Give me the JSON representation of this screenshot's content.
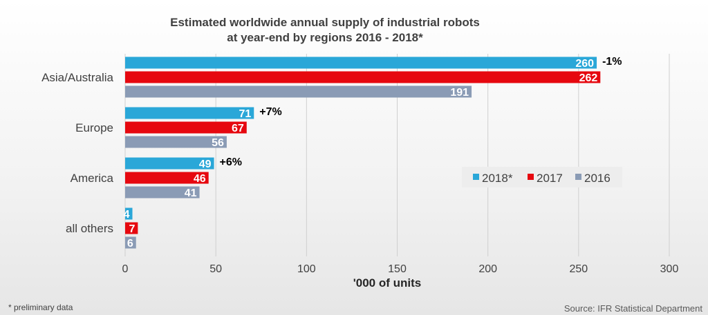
{
  "chart_data": {
    "type": "bar",
    "orientation": "horizontal",
    "title": [
      "Estimated worldwide annual supply of industrial robots",
      "at year-end by regions 2016 - 2018*"
    ],
    "categories": [
      "Asia/Australia",
      "Europe",
      "America",
      "all others"
    ],
    "series": [
      {
        "name": "2018*",
        "values": [
          260,
          71,
          49,
          4
        ],
        "color": "#2aa7d8"
      },
      {
        "name": "2017",
        "values": [
          262,
          67,
          46,
          7
        ],
        "color": "#e6080f"
      },
      {
        "name": "2016",
        "values": [
          191,
          56,
          41,
          6
        ],
        "color": "#8a9bb5"
      }
    ],
    "changes": [
      "-1%",
      "+7%",
      "+6%",
      ""
    ],
    "xlabel": "'000 of units",
    "xlim": [
      0,
      300
    ],
    "xticks": [
      0,
      50,
      100,
      150,
      200,
      250,
      300
    ],
    "grid": true,
    "legend_position": "right"
  },
  "footnote": "* preliminary data",
  "source": "Source: IFR Statistical Department"
}
